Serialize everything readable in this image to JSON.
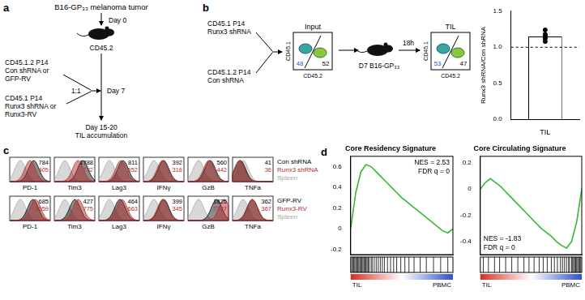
{
  "panels": {
    "a": {
      "label": "a",
      "tumor": "B16-GP₃₃ melanoma tumor",
      "day0": "Day 0",
      "host": "CD45.2",
      "donor_control": [
        "CD45.1.2 P14",
        "Con shRNA or",
        "GFP-RV"
      ],
      "ratio": "1:1",
      "donor_runx3": [
        "CD45.1 P14",
        "Runx3 shRNA or",
        "Runx3-RV"
      ],
      "day7": "Day 7",
      "readout": [
        "Day 15-20",
        "TIL accumulation"
      ]
    },
    "b": {
      "label": "b",
      "donor_runx3": [
        "CD45.1 P14",
        "Runx3 shRNA"
      ],
      "donor_control": [
        "CD45.1.2 P14",
        "Con shRNA"
      ],
      "input": {
        "title": "Input",
        "y_label": "CD45.1",
        "x_label": "CD45.2",
        "left": 48,
        "right": 52
      },
      "host": "D7 B16-GP₃₃",
      "time": "18h",
      "til": {
        "title": "TIL",
        "y_label": "CD45.1",
        "x_label": "CD45.2",
        "left": 53,
        "right": 47
      }
    },
    "c": {
      "label": "c",
      "rows": [
        {
          "legend": [
            {
              "name": "Con shRNA",
              "color": "#000000"
            },
            {
              "name": "Runx3 shRNA",
              "color": "#b03030"
            },
            {
              "name": "Spleen",
              "color": "#a8a8a8"
            }
          ],
          "markers": [
            {
              "name": "PD-1",
              "values": [
                784,
                405
              ]
            },
            {
              "name": "Tim3",
              "values": [
                1788,
                732
              ]
            },
            {
              "name": "Lag3",
              "values": [
                811,
                552
              ]
            },
            {
              "name": "IFNγ",
              "values": [
                392,
                318
              ]
            },
            {
              "name": "GzB",
              "values": [
                560,
                442
              ]
            },
            {
              "name": "TNFa",
              "values": [
                41,
                36
              ]
            }
          ]
        },
        {
          "legend": [
            {
              "name": "GFP-RV",
              "color": "#000000"
            },
            {
              "name": "Runx3-RV",
              "color": "#b03030"
            },
            {
              "name": "Spleen",
              "color": "#a8a8a8"
            }
          ],
          "markers": [
            {
              "name": "PD-1",
              "values": [
                685,
                1059
              ]
            },
            {
              "name": "Tim3",
              "values": [
                427,
                775
              ]
            },
            {
              "name": "Lag3",
              "values": [
                464,
                663
              ]
            },
            {
              "name": "IFNγ",
              "values": [
                399,
                345
              ]
            },
            {
              "name": "GzB",
              "values": [
                1825,
                7237
              ]
            },
            {
              "name": "TNFa",
              "values": [
                362,
                367
              ]
            }
          ]
        }
      ]
    },
    "d": {
      "label": "d"
    }
  },
  "chart_data": [
    {
      "type": "bar",
      "categories": [
        "TIL"
      ],
      "values": [
        1.15
      ],
      "points": [
        1.08,
        1.12,
        1.14,
        1.16,
        1.18,
        1.24
      ],
      "reference": 1,
      "y_label": "Runx3 shRNA/Con shRNA",
      "color": "#ffffff",
      "ylim": [
        0,
        1.5
      ],
      "yticks": [
        {
          "value": 0,
          "label": "0.0"
        },
        {
          "value": 0.5,
          "label": "0.5"
        },
        {
          "value": 1,
          "label": "1.0"
        },
        {
          "value": 1.5,
          "label": "1.5"
        }
      ],
      "grid": false
    },
    {
      "type": "line",
      "title": "Core Residency Signature",
      "annotations": [
        "NES = 2.53",
        "FDR q = 0"
      ],
      "x": [
        0,
        5,
        10,
        15,
        20,
        25,
        30,
        35,
        40,
        45,
        50,
        55,
        60,
        65,
        70,
        75,
        80,
        85,
        90,
        95,
        100
      ],
      "values": [
        0,
        0.35,
        0.55,
        0.62,
        0.6,
        0.55,
        0.5,
        0.45,
        0.4,
        0.35,
        0.3,
        0.26,
        0.22,
        0.18,
        0.14,
        0.1,
        0.06,
        0.02,
        -0.02,
        -0.04,
        0
      ],
      "color": "#33bb33",
      "xlim": [
        0,
        100
      ],
      "ylim": [
        -0.25,
        0.7
      ],
      "yticks": [
        -0.2,
        0,
        0.2,
        0.4,
        0.6
      ],
      "tick_labels": "y",
      "grid": false,
      "hits": [
        1,
        2,
        3,
        4,
        5,
        6,
        7,
        8,
        9,
        10,
        11,
        12,
        13,
        14,
        15,
        16,
        17,
        18,
        20,
        21,
        23,
        25,
        27,
        29,
        31,
        33,
        36,
        39,
        42,
        45,
        49,
        53,
        57,
        62,
        68,
        74,
        81,
        88,
        95
      ],
      "rank_labels": [
        "TIL",
        "PBMC"
      ]
    },
    {
      "type": "line",
      "title": "Core Circulating Signature",
      "annotations": [
        "NES = -1.83",
        "FDR q = 0"
      ],
      "x": [
        0,
        5,
        10,
        15,
        20,
        25,
        30,
        35,
        40,
        45,
        50,
        55,
        60,
        65,
        70,
        75,
        80,
        85,
        90,
        95,
        100
      ],
      "values": [
        0,
        0.05,
        0.08,
        0.05,
        0.02,
        -0.02,
        -0.06,
        -0.1,
        -0.14,
        -0.18,
        -0.22,
        -0.26,
        -0.3,
        -0.33,
        -0.36,
        -0.4,
        -0.43,
        -0.45,
        -0.4,
        -0.25,
        0
      ],
      "color": "#33bb33",
      "xlim": [
        0,
        100
      ],
      "ylim": [
        -0.5,
        0.25
      ],
      "yticks": [
        -0.4,
        -0.2,
        0,
        0.2
      ],
      "tick_labels": "y",
      "grid": false,
      "hits": [
        3,
        8,
        14,
        19,
        25,
        31,
        37,
        43,
        48,
        53,
        58,
        62,
        66,
        70,
        73,
        76,
        79,
        81,
        83,
        85,
        87,
        88,
        90,
        91,
        92,
        93,
        94,
        95,
        96,
        97,
        98,
        99
      ],
      "rank_labels": [
        "TIL",
        "PBMC"
      ]
    }
  ]
}
